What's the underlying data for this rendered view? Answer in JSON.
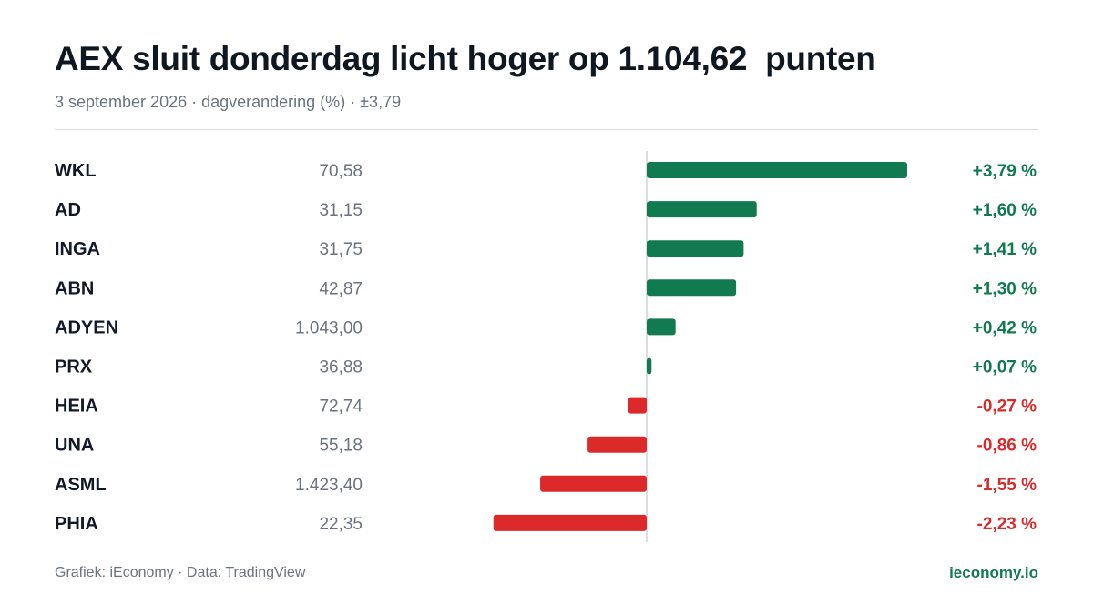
{
  "header": {
    "title": "AEX sluit donderdag licht hoger op 1.104,62  punten",
    "subtitle": "3 september 2026 · dagverandering (%) · ±3,79"
  },
  "footer": {
    "source": "Grafiek: iEconomy · Data: TradingView",
    "brand": "ieconomy.io"
  },
  "colors": {
    "positive": "#127a50",
    "negative": "#dc2a2a",
    "brand": "#127a50",
    "baseline": "#cfd3d6"
  },
  "chart_data": {
    "type": "bar",
    "orientation": "horizontal",
    "unit": "%",
    "xlim": [
      -3.79,
      3.79
    ],
    "categories": [
      "WKL",
      "AD",
      "INGA",
      "ABN",
      "ADYEN",
      "PRX",
      "HEIA",
      "UNA",
      "ASML",
      "PHIA"
    ],
    "prices": [
      "70,58",
      "31,15",
      "31,75",
      "42,87",
      "1.043,00",
      "36,88",
      "72,74",
      "55,18",
      "1.423,40",
      "22,35"
    ],
    "values": [
      3.79,
      1.6,
      1.41,
      1.3,
      0.42,
      0.07,
      -0.27,
      -0.86,
      -1.55,
      -2.23
    ],
    "value_labels": [
      "+3,79 %",
      "+1,60 %",
      "+1,41 %",
      "+1,30 %",
      "+0,42 %",
      "+0,07 %",
      "-0,27 %",
      "-0,86 %",
      "-1,55 %",
      "-2,23 %"
    ]
  }
}
